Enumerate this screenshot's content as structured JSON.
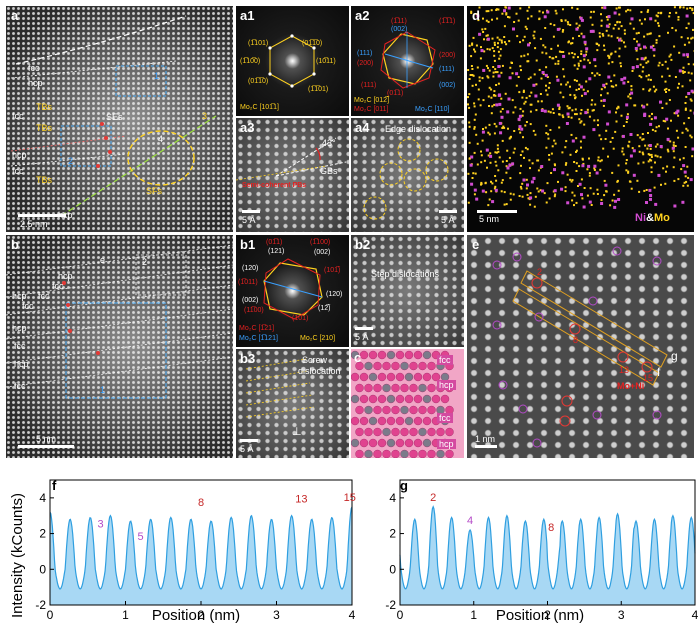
{
  "panels": {
    "a": {
      "letter": "a",
      "phases": [
        "fcc",
        "hcp",
        "fcc",
        "hcp",
        "fcc",
        "hcp"
      ],
      "defects": [
        "TBs",
        "TBs",
        "TBs",
        "SEs",
        "SFs"
      ],
      "markers": [
        "1",
        "2",
        "3",
        "4"
      ],
      "scale": "2.5 nm"
    },
    "a1": {
      "letter": "a1",
      "spots": [
        "(1̅101)",
        "(01̅̅1̅0)",
        "(1̅̅10̅0)",
        "(10̅11)",
        "(01̅1̅0)",
        "(1̅1̅01)"
      ],
      "caption": "Mo₂C [101̅1]"
    },
    "a2": {
      "letter": "a2",
      "spots": [
        "(1̅11)",
        "(002)",
        "(111)",
        "(200)",
        "(1̅1̅1)",
        "(111)",
        "(200)",
        "(002)",
        "(111)",
        "(01̅1)"
      ],
      "caption_left": "Mo₂C [012̅]",
      "caption_left2": "Mo₂C [011]",
      "caption_right": "Mo₂C [110]"
    },
    "a3": {
      "letter": "a3",
      "angle": "43°",
      "gb": "GBs",
      "note": "Semi-coherent PBs",
      "scale": "5 Å"
    },
    "a4": {
      "letter": "a4",
      "title": "Edge dislocation",
      "scale": "5 Å"
    },
    "d": {
      "letter": "d",
      "scale": "5 nm",
      "legend_ni": "Ni",
      "legend_amp": "&",
      "legend_mo": "Mo"
    },
    "b": {
      "letter": "b",
      "phases": [
        "hcp",
        "fcc",
        "hcp",
        "fcc",
        "fcc",
        "hcp",
        "fcc",
        "hcp",
        "fcc"
      ],
      "markers": [
        "e",
        "2",
        "1"
      ],
      "scale": "5 nm"
    },
    "b1": {
      "letter": "b1",
      "spots": [
        "(01̅1)",
        "(1̅100)",
        "(121)",
        "(002)",
        "(120)",
        "(101̅)",
        "(1̅011)",
        "(002)",
        "(120)",
        "(12̅)",
        "(11̅00)",
        "(101)"
      ],
      "caption1": "Mo₂C [1̅21]",
      "caption2": "Mo₂C [1̅121]",
      "caption3": "Mo₂C [210]"
    },
    "b2": {
      "letter": "b2",
      "title": "Step dislocations",
      "scale": "5 Å"
    },
    "b3": {
      "letter": "b3",
      "title1": "Screw",
      "title2": "dislocation",
      "scale": "5 Å"
    },
    "c": {
      "letter": "c",
      "layers": [
        "fcc",
        "hcp",
        "fcc",
        "hcp"
      ]
    },
    "e": {
      "letter": "e",
      "nums": [
        "2",
        "8",
        "13",
        "15"
      ],
      "note": "Mo+Ni",
      "lines": [
        "f",
        "g"
      ],
      "scale": "1 nm"
    }
  },
  "profiles": {
    "ylabel": "Intensity (kCounts)",
    "f": {
      "letter": "f",
      "xlabel": "Position (nm)",
      "peaks": [
        "3",
        "5",
        "8",
        "13",
        "15"
      ]
    },
    "g": {
      "letter": "g",
      "xlabel": "Position (nm)",
      "peaks": [
        "2",
        "4",
        "8"
      ]
    }
  },
  "colors": {
    "profile_line": "#2f9fe0",
    "profile_fill": "#a8d8f4",
    "mo": "#ffd21f",
    "ni": "#d14cd1",
    "red": "#c62828",
    "purple": "#b44bc8"
  },
  "chart_data": [
    {
      "type": "area",
      "title": "",
      "xlabel": "Position (nm)",
      "ylabel": "Intensity (kCounts)",
      "xlim": [
        0,
        4
      ],
      "ylim": [
        -2,
        5
      ],
      "xticks": [
        0,
        1,
        2,
        3,
        4
      ],
      "yticks": [
        -2,
        0,
        2,
        4
      ],
      "series": [
        {
          "x": [
            0.0,
            0.13,
            0.27,
            0.4,
            0.53,
            0.67,
            0.8,
            0.93,
            1.07,
            1.2,
            1.33,
            1.47,
            1.6,
            1.73,
            1.87,
            2.0,
            2.13,
            2.27,
            2.4,
            2.53,
            2.67,
            2.8,
            2.93,
            3.07,
            3.2,
            3.33,
            3.47,
            3.6,
            3.73,
            3.87,
            3.97
          ],
          "y": [
            3.2,
            -1.2,
            2.8,
            -1.1,
            2.9,
            2.0,
            3.0,
            -1.0,
            2.7,
            1.3,
            2.8,
            -0.9,
            2.9,
            -1.0,
            2.8,
            3.2,
            2.7,
            -1.0,
            2.9,
            -0.9,
            3.0,
            -1.1,
            2.8,
            -0.9,
            3.0,
            3.4,
            2.8,
            -1.0,
            2.9,
            -1.0,
            3.5
          ],
          "labels": [
            "",
            "",
            "",
            "",
            "",
            "3",
            "",
            "",
            "",
            "5",
            "",
            "",
            "",
            "",
            "",
            "8",
            "",
            "",
            "",
            "",
            "",
            "",
            "",
            "",
            "",
            "13",
            "",
            "",
            "",
            "",
            "15"
          ]
        }
      ]
    },
    {
      "type": "area",
      "title": "",
      "xlabel": "Position (nm)",
      "ylabel": "",
      "xlim": [
        0,
        4
      ],
      "ylim": [
        -2,
        5
      ],
      "xticks": [
        0,
        1,
        2,
        3,
        4
      ],
      "yticks": [
        -2,
        0,
        2,
        4
      ],
      "series": [
        {
          "x": [
            0.05,
            0.2,
            0.45,
            0.7,
            0.95,
            1.2,
            1.45,
            1.7,
            1.95,
            2.05,
            2.3,
            2.55,
            2.8,
            3.05,
            3.3,
            3.55,
            3.8,
            3.98
          ],
          "y": [
            2.6,
            2.8,
            3.5,
            2.9,
            2.2,
            2.9,
            3.0,
            2.7,
            2.8,
            1.8,
            2.7,
            2.8,
            2.9,
            3.1,
            2.7,
            2.8,
            3.0,
            2.9
          ],
          "labels": [
            "",
            "",
            "2",
            "",
            "4",
            "",
            "",
            "",
            "",
            "8",
            "",
            "",
            "",
            "",
            "",
            "",
            "",
            ""
          ]
        }
      ]
    }
  ]
}
